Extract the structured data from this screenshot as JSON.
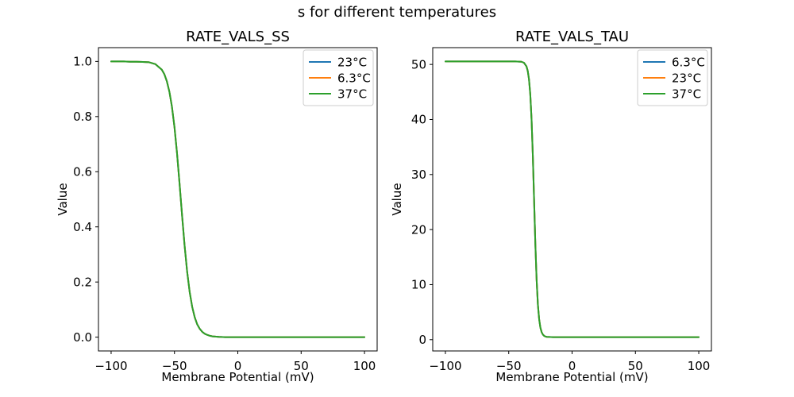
{
  "figure": {
    "suptitle": "s for different temperatures",
    "background": "#ffffff",
    "text_color": "#000000"
  },
  "chart_data": [
    {
      "type": "line",
      "title": "RATE_VALS_SS",
      "xlabel": "Membrane Potential (mV)",
      "ylabel": "Value",
      "xlim": [
        -110,
        110
      ],
      "ylim": [
        -0.05,
        1.05
      ],
      "grid": false,
      "xtick_values": [
        -100,
        -50,
        0,
        50,
        100
      ],
      "xtick_labels": [
        "−100",
        "−50",
        "0",
        "50",
        "100"
      ],
      "ytick_values": [
        0.0,
        0.2,
        0.4,
        0.6,
        0.8,
        1.0
      ],
      "ytick_labels": [
        "0.0",
        "0.2",
        "0.4",
        "0.6",
        "0.8",
        "1.0"
      ],
      "legend": {
        "position": "upper right",
        "entries": [
          {
            "label": "23°C",
            "color": "#1f77b4"
          },
          {
            "label": "6.3°C",
            "color": "#ff7f0e"
          },
          {
            "label": "37°C",
            "color": "#2ca02c"
          }
        ]
      },
      "x": [
        -100,
        -95,
        -90,
        -85,
        -80,
        -75,
        -70,
        -65,
        -60,
        -58,
        -56,
        -54,
        -52,
        -50,
        -48,
        -46,
        -44,
        -42,
        -40,
        -38,
        -36,
        -34,
        -32,
        -30,
        -28,
        -26,
        -24,
        -22,
        -20,
        -15,
        -10,
        -5,
        0,
        10,
        20,
        30,
        40,
        50,
        60,
        70,
        80,
        90,
        100
      ],
      "y_shared": [
        1.0,
        1.0,
        1.0,
        0.999,
        0.999,
        0.998,
        0.997,
        0.99,
        0.97,
        0.954,
        0.928,
        0.89,
        0.836,
        0.762,
        0.668,
        0.558,
        0.442,
        0.332,
        0.238,
        0.164,
        0.11,
        0.072,
        0.046,
        0.03,
        0.019,
        0.012,
        0.008,
        0.005,
        0.003,
        0.001,
        0.0,
        0.0,
        0.0,
        0.0,
        0.0,
        0.0,
        0.0,
        0.0,
        0.0,
        0.0,
        0.0,
        0.0,
        0.0
      ],
      "series": [
        {
          "name": "23°C",
          "color": "#1f77b4"
        },
        {
          "name": "6.3°C",
          "color": "#ff7f0e"
        },
        {
          "name": "37°C",
          "color": "#2ca02c"
        }
      ],
      "note": "All three temperature curves coincide exactly; only the last-drawn green 37°C trace is visible. Sigmoid falling from 1.0 to 0.0, midpoint ≈ −45 mV."
    },
    {
      "type": "line",
      "title": "RATE_VALS_TAU",
      "xlabel": "Membrane Potential (mV)",
      "ylabel": "Value",
      "xlim": [
        -110,
        110
      ],
      "ylim": [
        -2.05,
        53.05
      ],
      "grid": false,
      "xtick_values": [
        -100,
        -50,
        0,
        50,
        100
      ],
      "xtick_labels": [
        "−100",
        "−50",
        "0",
        "50",
        "100"
      ],
      "ytick_values": [
        0,
        10,
        20,
        30,
        40,
        50
      ],
      "ytick_labels": [
        "0",
        "10",
        "20",
        "30",
        "40",
        "50"
      ],
      "legend": {
        "position": "upper right",
        "entries": [
          {
            "label": "6.3°C",
            "color": "#1f77b4"
          },
          {
            "label": "23°C",
            "color": "#ff7f0e"
          },
          {
            "label": "37°C",
            "color": "#2ca02c"
          }
        ]
      },
      "x": [
        -100,
        -90,
        -80,
        -70,
        -60,
        -55,
        -50,
        -45,
        -40,
        -38,
        -36,
        -35,
        -34,
        -33,
        -32,
        -31,
        -30,
        -29,
        -28,
        -27,
        -26,
        -25,
        -24,
        -23,
        -22,
        -21,
        -20,
        -15,
        -10,
        -5,
        0,
        10,
        20,
        30,
        40,
        50,
        60,
        70,
        80,
        90,
        100
      ],
      "y_shared": [
        50.55,
        50.55,
        50.55,
        50.55,
        50.55,
        50.55,
        50.55,
        50.55,
        50.49,
        50.31,
        49.65,
        48.82,
        47.28,
        44.58,
        40.1,
        33.56,
        25.5,
        17.44,
        10.9,
        6.42,
        3.72,
        2.18,
        1.35,
        0.92,
        0.69,
        0.57,
        0.51,
        0.46,
        0.45,
        0.45,
        0.45,
        0.45,
        0.45,
        0.45,
        0.45,
        0.45,
        0.45,
        0.45,
        0.45,
        0.45,
        0.45
      ],
      "series": [
        {
          "name": "6.3°C",
          "color": "#1f77b4"
        },
        {
          "name": "23°C",
          "color": "#ff7f0e"
        },
        {
          "name": "37°C",
          "color": "#2ca02c"
        }
      ],
      "note": "All three temperature curves coincide exactly; only the last-drawn green 37°C trace is visible. Step-like sigmoid falling from ≈50.5 to ≈0.45, midpoint ≈ −30 mV."
    }
  ]
}
